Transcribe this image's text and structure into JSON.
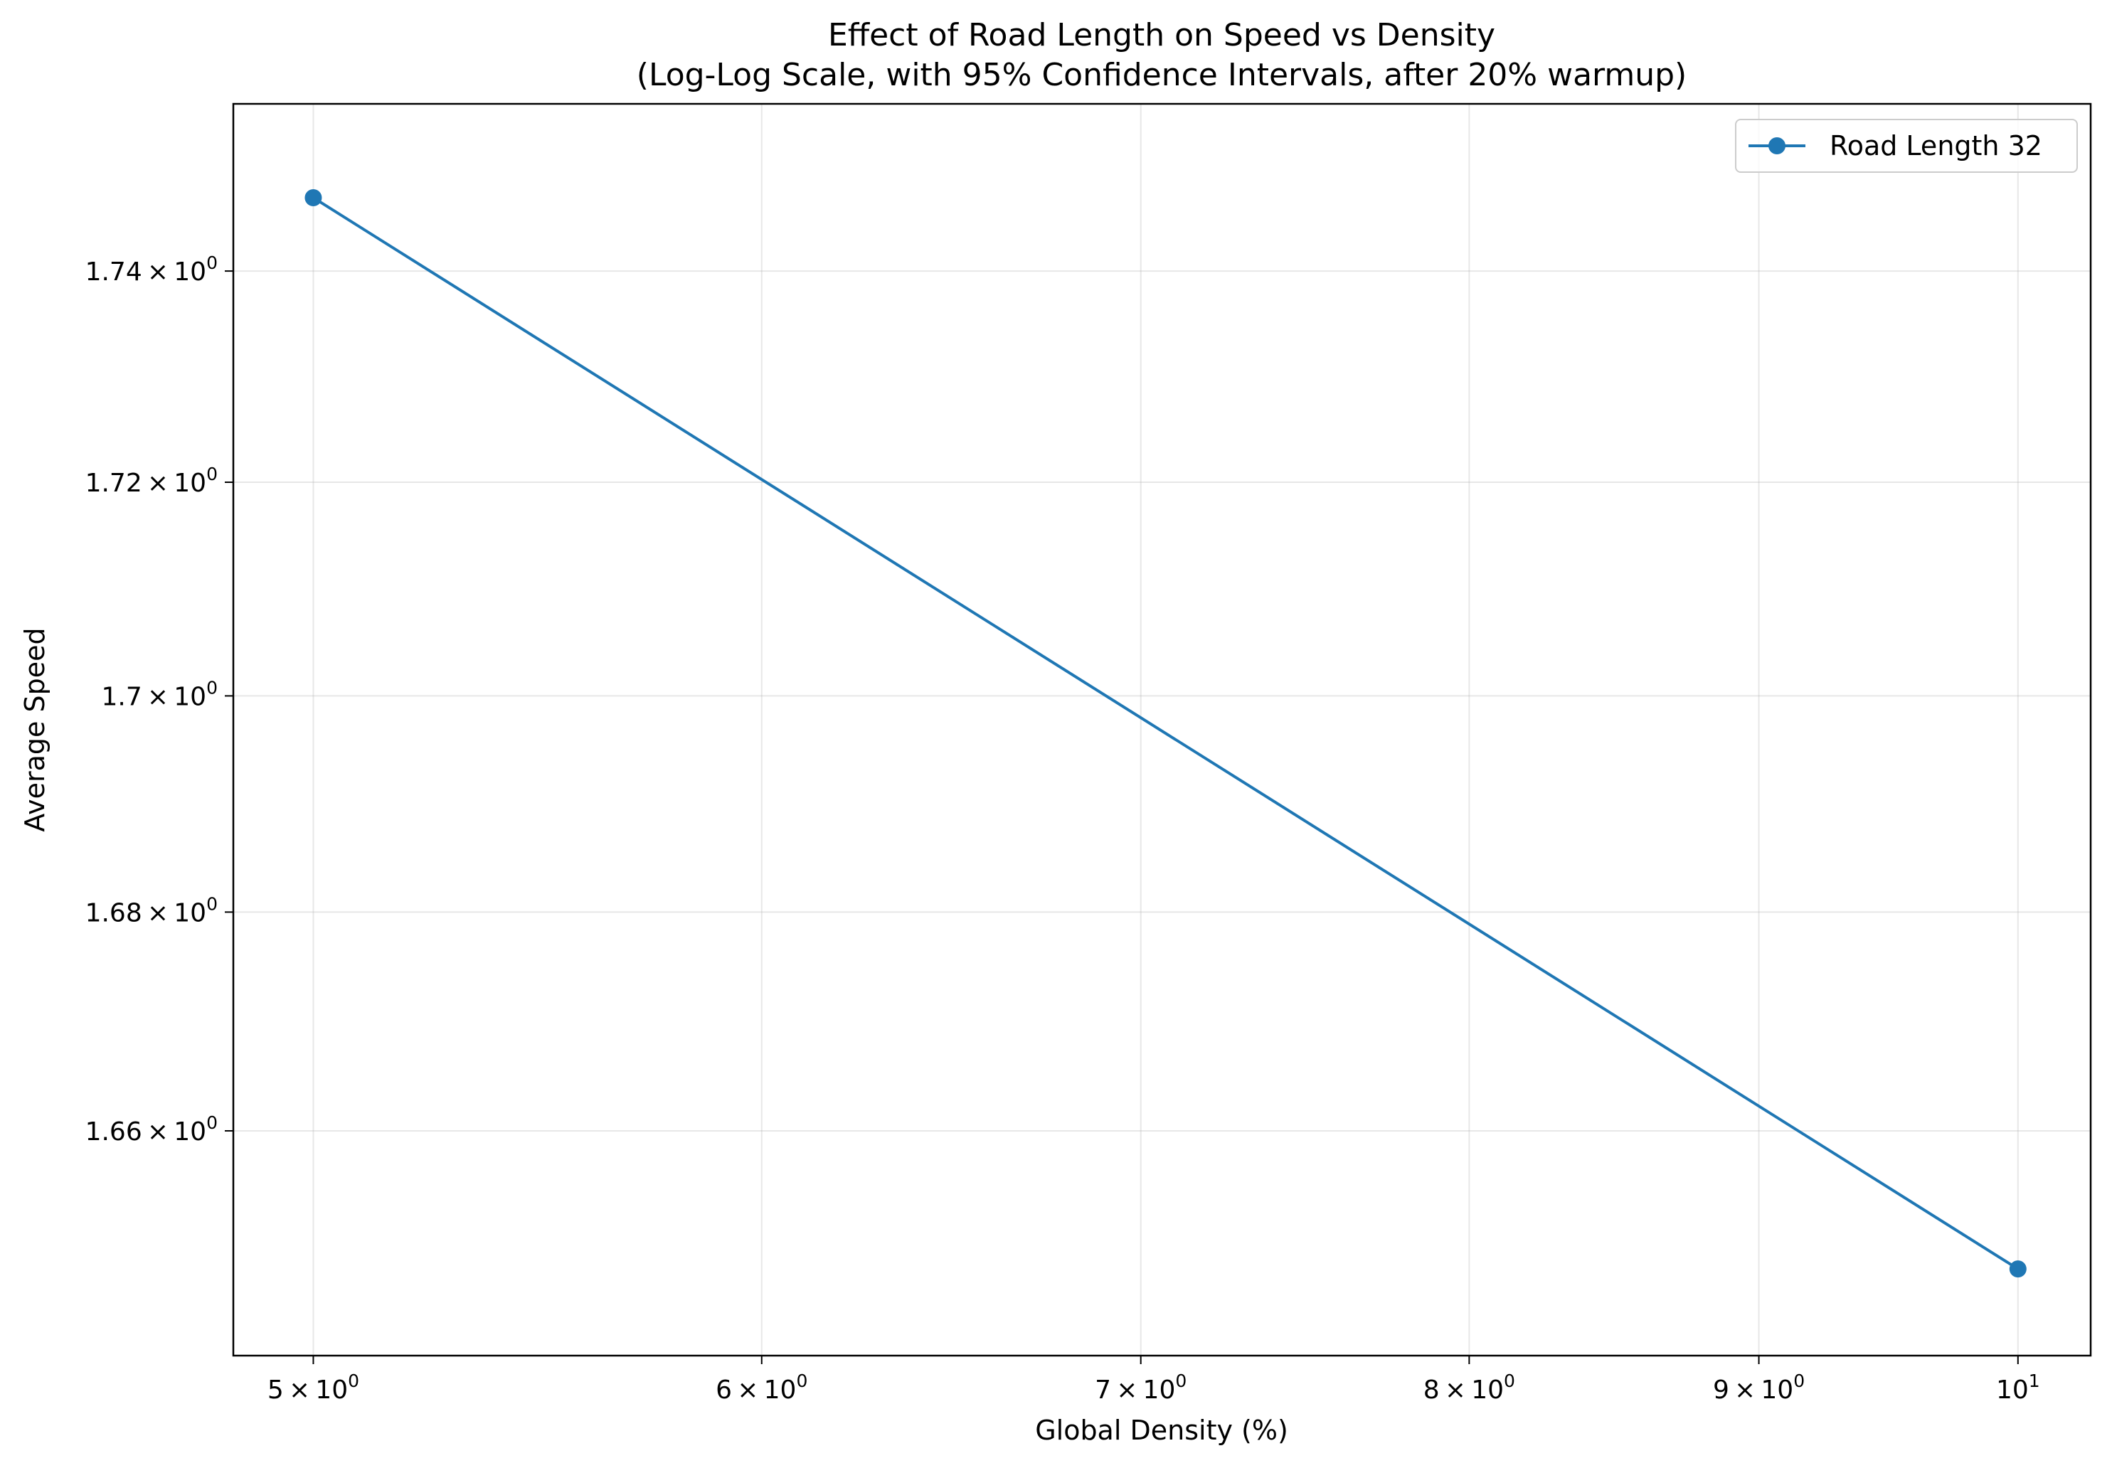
{
  "chart_data": {
    "type": "line",
    "title": "Effect of Road Length on Speed vs Density",
    "subtitle": "(Log-Log Scale, with 95% Confidence Intervals, after 20% warmup)",
    "xlabel": "Global Density (%)",
    "ylabel": "Average Speed",
    "xscale": "log",
    "yscale": "log",
    "xlim": [
      4.84,
      10.3
    ],
    "ylim": [
      1.6397,
      1.756
    ],
    "grid": true,
    "legend_position": "top-right",
    "x_ticks": [
      {
        "value": 5,
        "mantissa": "5",
        "exp": "0"
      },
      {
        "value": 6,
        "mantissa": "6",
        "exp": "0"
      },
      {
        "value": 7,
        "mantissa": "7",
        "exp": "0"
      },
      {
        "value": 8,
        "mantissa": "8",
        "exp": "0"
      },
      {
        "value": 9,
        "mantissa": "9",
        "exp": "0"
      },
      {
        "value": 10,
        "mantissa": "",
        "exp": "1"
      }
    ],
    "y_ticks": [
      {
        "value": 1.66,
        "mantissa": "1.66",
        "exp": "0"
      },
      {
        "value": 1.68,
        "mantissa": "1.68",
        "exp": "0"
      },
      {
        "value": 1.7,
        "mantissa": "1.7",
        "exp": "0"
      },
      {
        "value": 1.72,
        "mantissa": "1.72",
        "exp": "0"
      },
      {
        "value": 1.74,
        "mantissa": "1.74",
        "exp": "0"
      }
    ],
    "series": [
      {
        "name": "Road Length 32",
        "color": "#1f77b4",
        "x": [
          5,
          10
        ],
        "y": [
          1.747,
          1.6475
        ]
      }
    ]
  }
}
